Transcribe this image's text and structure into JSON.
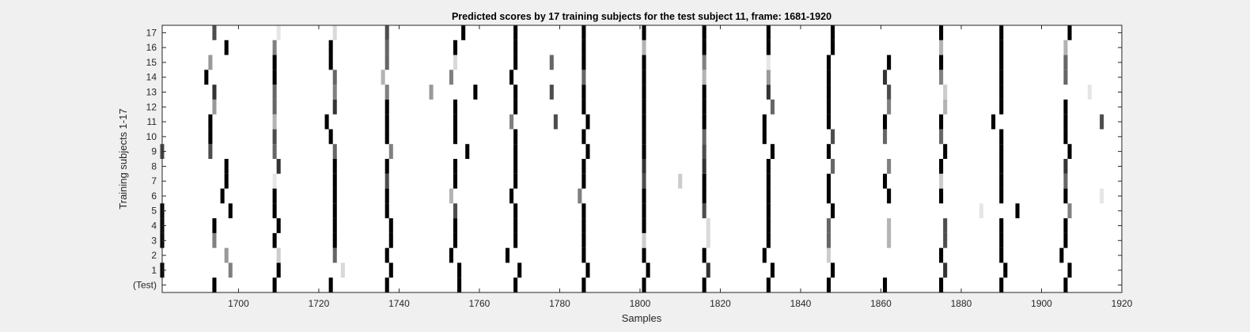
{
  "chart_data": {
    "type": "heatmap",
    "title": "Predicted scores by 17 training subjects for the test subject 11, frame: 1681-1920",
    "xlabel": "Samples",
    "ylabel": "Training subjects 1-17",
    "xlim": [
      1681,
      1920
    ],
    "xticks": [
      1700,
      1720,
      1740,
      1760,
      1780,
      1800,
      1820,
      1840,
      1860,
      1880,
      1900,
      1920
    ],
    "rows": [
      "(Test)",
      "1",
      "2",
      "3",
      "4",
      "5",
      "6",
      "7",
      "8",
      "9",
      "10",
      "11",
      "12",
      "13",
      "14",
      "15",
      "16",
      "17"
    ],
    "colormap": "gray-inverted",
    "grid": false,
    "cells": [
      {
        "row": "(Test)",
        "marks": [
          [
            1694,
            1
          ],
          [
            1709,
            1
          ],
          [
            1723,
            1
          ],
          [
            1737,
            1
          ],
          [
            1755,
            1
          ],
          [
            1769,
            1
          ],
          [
            1786,
            1
          ],
          [
            1801,
            1
          ],
          [
            1816,
            1
          ],
          [
            1832,
            1
          ],
          [
            1847,
            1
          ],
          [
            1861,
            1
          ],
          [
            1875,
            1
          ],
          [
            1890,
            1
          ],
          [
            1906,
            1
          ]
        ]
      },
      {
        "row": "1",
        "marks": [
          [
            1681,
            1
          ],
          [
            1698,
            0.5
          ],
          [
            1710,
            1
          ],
          [
            1726,
            0.15
          ],
          [
            1738,
            1
          ],
          [
            1755,
            1
          ],
          [
            1770,
            1
          ],
          [
            1787,
            1
          ],
          [
            1802,
            1
          ],
          [
            1817,
            0.8
          ],
          [
            1833,
            1
          ],
          [
            1848,
            1
          ],
          [
            1876,
            0.8
          ],
          [
            1891,
            1
          ],
          [
            1907,
            1
          ]
        ]
      },
      {
        "row": "2",
        "marks": [
          [
            1697,
            0.4
          ],
          [
            1710,
            0.2
          ],
          [
            1724,
            0.6
          ],
          [
            1737,
            1
          ],
          [
            1753,
            1
          ],
          [
            1767,
            1
          ],
          [
            1786,
            1
          ],
          [
            1801,
            1
          ],
          [
            1816,
            1
          ],
          [
            1831,
            1
          ],
          [
            1847,
            0.2
          ],
          [
            1875,
            1
          ],
          [
            1890,
            1
          ],
          [
            1905,
            1
          ]
        ]
      },
      {
        "row": "3",
        "marks": [
          [
            1681,
            1
          ],
          [
            1694,
            0.5
          ],
          [
            1709,
            1
          ],
          [
            1724,
            1
          ],
          [
            1738,
            1
          ],
          [
            1754,
            1
          ],
          [
            1769,
            1
          ],
          [
            1786,
            1
          ],
          [
            1801,
            0.2
          ],
          [
            1817,
            0.15
          ],
          [
            1832,
            1
          ],
          [
            1847,
            0.6
          ],
          [
            1862,
            0.3
          ],
          [
            1876,
            0.7
          ],
          [
            1890,
            1
          ],
          [
            1906,
            1
          ]
        ]
      },
      {
        "row": "4",
        "marks": [
          [
            1681,
            1
          ],
          [
            1694,
            1
          ],
          [
            1710,
            1
          ],
          [
            1724,
            1
          ],
          [
            1738,
            1
          ],
          [
            1754,
            1
          ],
          [
            1769,
            1
          ],
          [
            1786,
            1
          ],
          [
            1801,
            1
          ],
          [
            1817,
            0.15
          ],
          [
            1832,
            1
          ],
          [
            1847,
            0.6
          ],
          [
            1862,
            0.3
          ],
          [
            1876,
            0.7
          ],
          [
            1890,
            1
          ],
          [
            1906,
            1
          ]
        ]
      },
      {
        "row": "5",
        "marks": [
          [
            1681,
            1
          ],
          [
            1698,
            1
          ],
          [
            1709,
            1
          ],
          [
            1724,
            1
          ],
          [
            1737,
            1
          ],
          [
            1754,
            0.7
          ],
          [
            1769,
            1
          ],
          [
            1786,
            1
          ],
          [
            1801,
            1
          ],
          [
            1816,
            0.7
          ],
          [
            1832,
            1
          ],
          [
            1848,
            1
          ],
          [
            1885,
            0.1
          ],
          [
            1894,
            1
          ],
          [
            1907,
            0.5
          ]
        ]
      },
      {
        "row": "6",
        "marks": [
          [
            1696,
            1
          ],
          [
            1709,
            1
          ],
          [
            1724,
            1
          ],
          [
            1737,
            1
          ],
          [
            1753,
            0.3
          ],
          [
            1768,
            1
          ],
          [
            1785,
            0.5
          ],
          [
            1801,
            1
          ],
          [
            1816,
            1
          ],
          [
            1832,
            1
          ],
          [
            1847,
            1
          ],
          [
            1862,
            1
          ],
          [
            1875,
            1
          ],
          [
            1890,
            1
          ],
          [
            1906,
            1
          ],
          [
            1915,
            0.1
          ]
        ]
      },
      {
        "row": "7",
        "marks": [
          [
            1697,
            1
          ],
          [
            1709,
            0.1
          ],
          [
            1724,
            1
          ],
          [
            1737,
            0.7
          ],
          [
            1754,
            1
          ],
          [
            1769,
            1
          ],
          [
            1786,
            1
          ],
          [
            1801,
            0.7
          ],
          [
            1810,
            0.2
          ],
          [
            1816,
            1
          ],
          [
            1832,
            1
          ],
          [
            1847,
            1
          ],
          [
            1861,
            1
          ],
          [
            1875,
            0.2
          ],
          [
            1890,
            1
          ],
          [
            1906,
            0.6
          ]
        ]
      },
      {
        "row": "8",
        "marks": [
          [
            1697,
            1
          ],
          [
            1710,
            0.8
          ],
          [
            1724,
            1
          ],
          [
            1737,
            1
          ],
          [
            1754,
            1
          ],
          [
            1769,
            1
          ],
          [
            1786,
            1
          ],
          [
            1801,
            0.8
          ],
          [
            1816,
            0.8
          ],
          [
            1832,
            1
          ],
          [
            1848,
            0.6
          ],
          [
            1862,
            0.5
          ],
          [
            1875,
            1
          ],
          [
            1890,
            1
          ],
          [
            1906,
            0.8
          ]
        ]
      },
      {
        "row": "9",
        "marks": [
          [
            1681,
            0.7
          ],
          [
            1693,
            0.7
          ],
          [
            1709,
            0.6
          ],
          [
            1724,
            0.6
          ],
          [
            1738,
            0.5
          ],
          [
            1757,
            1
          ],
          [
            1769,
            1
          ],
          [
            1787,
            1
          ],
          [
            1801,
            1
          ],
          [
            1816,
            0.7
          ],
          [
            1833,
            1
          ],
          [
            1847,
            1
          ],
          [
            1876,
            1
          ],
          [
            1890,
            1
          ],
          [
            1907,
            1
          ]
        ]
      },
      {
        "row": "10",
        "marks": [
          [
            1693,
            1
          ],
          [
            1709,
            0.7
          ],
          [
            1723,
            1
          ],
          [
            1737,
            1
          ],
          [
            1754,
            1
          ],
          [
            1769,
            1
          ],
          [
            1786,
            1
          ],
          [
            1801,
            1
          ],
          [
            1816,
            0.6
          ],
          [
            1831,
            1
          ],
          [
            1848,
            0.7
          ],
          [
            1861,
            0.6
          ],
          [
            1875,
            0.6
          ],
          [
            1890,
            1
          ],
          [
            1906,
            1
          ]
        ]
      },
      {
        "row": "11",
        "marks": [
          [
            1693,
            1
          ],
          [
            1709,
            0.3
          ],
          [
            1722,
            1
          ],
          [
            1737,
            1
          ],
          [
            1754,
            1
          ],
          [
            1768,
            0.5
          ],
          [
            1779,
            0.7
          ],
          [
            1787,
            1
          ],
          [
            1801,
            1
          ],
          [
            1816,
            1
          ],
          [
            1831,
            1
          ],
          [
            1847,
            1
          ],
          [
            1861,
            1
          ],
          [
            1875,
            1
          ],
          [
            1888,
            1
          ],
          [
            1906,
            1
          ],
          [
            1915,
            0.7
          ]
        ]
      },
      {
        "row": "12",
        "marks": [
          [
            1694,
            0.4
          ],
          [
            1709,
            0.6
          ],
          [
            1724,
            0.8
          ],
          [
            1737,
            1
          ],
          [
            1754,
            1
          ],
          [
            1769,
            1
          ],
          [
            1786,
            1
          ],
          [
            1801,
            1
          ],
          [
            1816,
            1
          ],
          [
            1833,
            0.6
          ],
          [
            1847,
            1
          ],
          [
            1862,
            0.5
          ],
          [
            1876,
            0.3
          ],
          [
            1890,
            1
          ],
          [
            1906,
            1
          ]
        ]
      },
      {
        "row": "13",
        "marks": [
          [
            1694,
            0.8
          ],
          [
            1709,
            0.6
          ],
          [
            1724,
            0.5
          ],
          [
            1737,
            0.5
          ],
          [
            1748,
            0.4
          ],
          [
            1759,
            1
          ],
          [
            1769,
            1
          ],
          [
            1778,
            0.7
          ],
          [
            1786,
            1
          ],
          [
            1801,
            1
          ],
          [
            1816,
            1
          ],
          [
            1832,
            0.8
          ],
          [
            1847,
            1
          ],
          [
            1862,
            0.7
          ],
          [
            1876,
            0.2
          ],
          [
            1890,
            1
          ],
          [
            1912,
            0.1
          ]
        ]
      },
      {
        "row": "14",
        "marks": [
          [
            1692,
            1
          ],
          [
            1709,
            1
          ],
          [
            1724,
            0.6
          ],
          [
            1736,
            0.3
          ],
          [
            1753,
            0.5
          ],
          [
            1768,
            1
          ],
          [
            1786,
            0.6
          ],
          [
            1801,
            1
          ],
          [
            1816,
            0.3
          ],
          [
            1832,
            0.4
          ],
          [
            1847,
            1
          ],
          [
            1861,
            0.8
          ],
          [
            1875,
            0.5
          ],
          [
            1890,
            1
          ],
          [
            1906,
            0.6
          ]
        ]
      },
      {
        "row": "15",
        "marks": [
          [
            1693,
            0.4
          ],
          [
            1709,
            1
          ],
          [
            1723,
            1
          ],
          [
            1737,
            0.6
          ],
          [
            1754,
            0.15
          ],
          [
            1769,
            1
          ],
          [
            1778,
            0.6
          ],
          [
            1786,
            1
          ],
          [
            1801,
            1
          ],
          [
            1816,
            0.5
          ],
          [
            1832,
            0.1
          ],
          [
            1847,
            1
          ],
          [
            1862,
            1
          ],
          [
            1875,
            1
          ],
          [
            1890,
            1
          ],
          [
            1906,
            0.6
          ]
        ]
      },
      {
        "row": "16",
        "marks": [
          [
            1697,
            1
          ],
          [
            1709,
            0.5
          ],
          [
            1723,
            1
          ],
          [
            1737,
            0.6
          ],
          [
            1754,
            1
          ],
          [
            1769,
            1
          ],
          [
            1786,
            1
          ],
          [
            1801,
            0.3
          ],
          [
            1816,
            1
          ],
          [
            1832,
            1
          ],
          [
            1848,
            1
          ],
          [
            1875,
            0.3
          ],
          [
            1890,
            1
          ],
          [
            1906,
            0.3
          ]
        ]
      },
      {
        "row": "17",
        "marks": [
          [
            1694,
            0.7
          ],
          [
            1710,
            0.1
          ],
          [
            1724,
            0.15
          ],
          [
            1737,
            0.7
          ],
          [
            1756,
            1
          ],
          [
            1769,
            1
          ],
          [
            1786,
            1
          ],
          [
            1801,
            1
          ],
          [
            1816,
            1
          ],
          [
            1832,
            1
          ],
          [
            1848,
            1
          ],
          [
            1875,
            1
          ],
          [
            1890,
            1
          ],
          [
            1907,
            1
          ]
        ]
      }
    ]
  }
}
